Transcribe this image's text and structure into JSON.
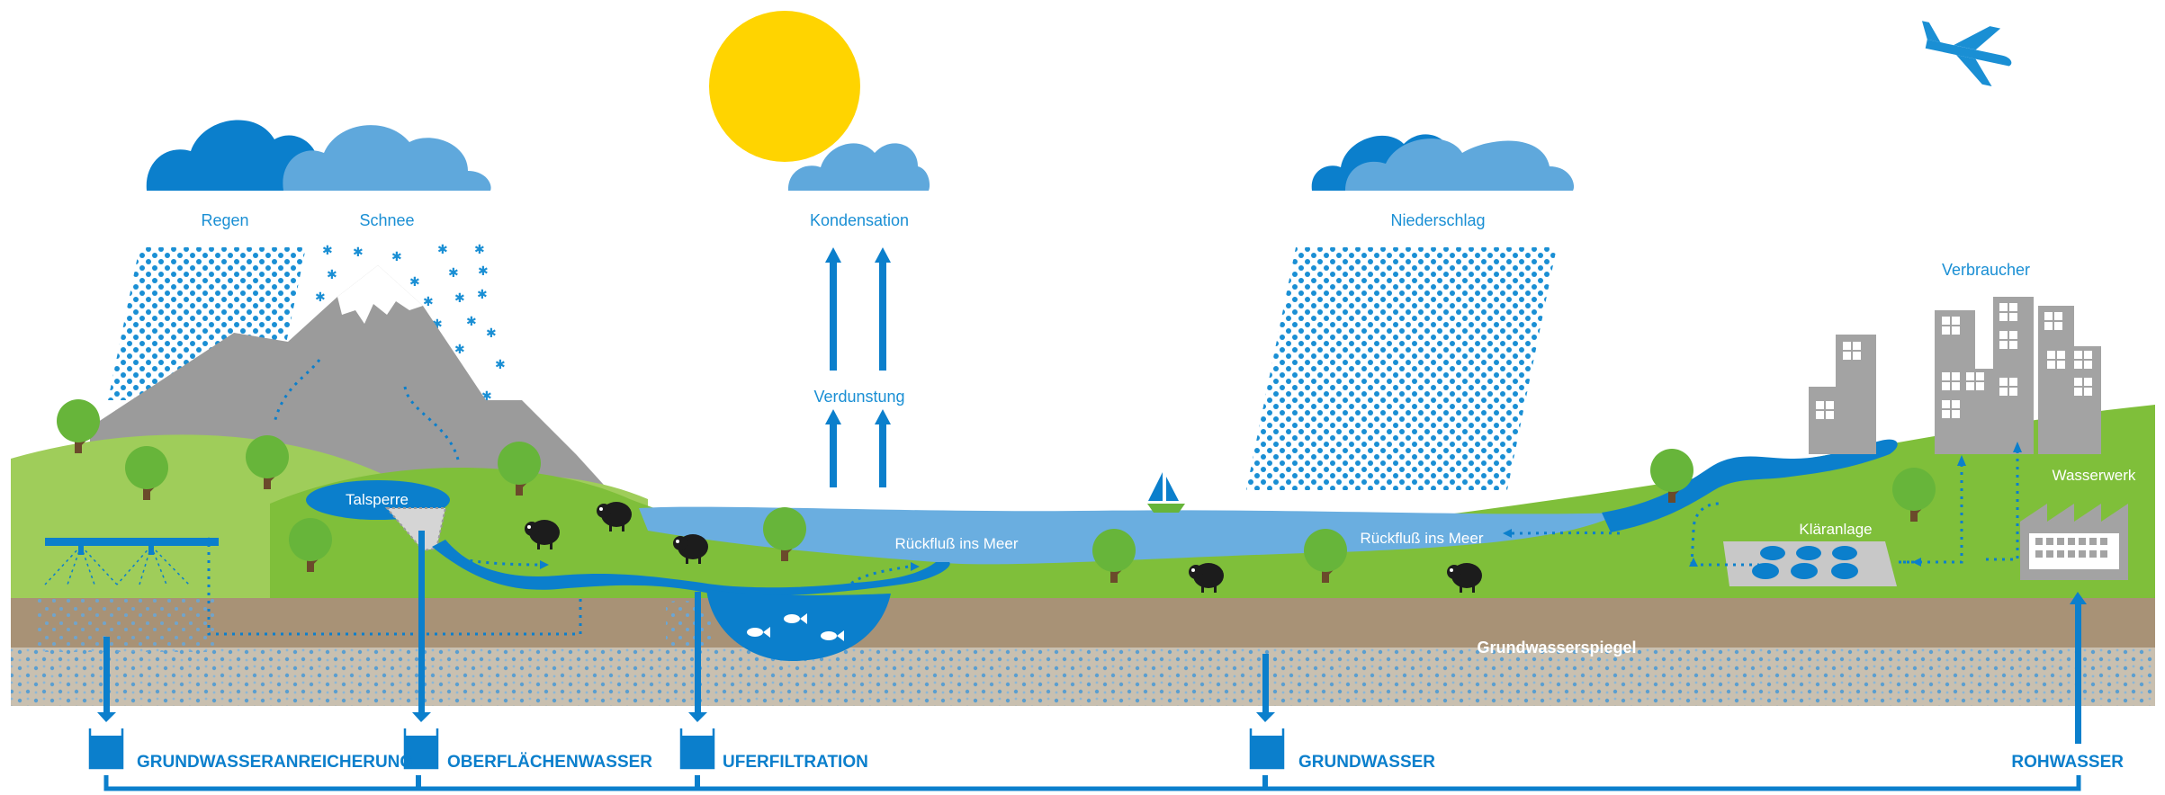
{
  "labels": {
    "regen": "Regen",
    "schnee": "Schnee",
    "kondensation": "Kondensation",
    "verdunstung": "Verdunstung",
    "niederschlag": "Niederschlag",
    "verbraucher": "Verbraucher",
    "wasserwerk": "Wasserwerk",
    "talsperre": "Talsperre",
    "rueckfluss_1": "Rückfluß ins Meer",
    "rueckfluss_2": "Rückfluß ins Meer",
    "klaeranlage": "Kläranlage",
    "grundwasserspiegel": "Grundwasserspiegel"
  },
  "sources": [
    {
      "label": "GRUNDWASSERANREICHERUNG"
    },
    {
      "label": "OBERFLÄCHENWASSER"
    },
    {
      "label": "UFERFILTRATION"
    },
    {
      "label": "GRUNDWASSER"
    },
    {
      "label": "ROHWASSER"
    }
  ],
  "colors": {
    "dark_blue": "#0b7fcc",
    "light_blue": "#5fa8dc",
    "lake_blue": "#6aaee0",
    "sun": "#ffd400",
    "grass": "#7fbf3a",
    "grass_light": "#9fcd5a",
    "mountain": "#9b9b9b",
    "soil": "#a89276",
    "gravel": "#c9c0b0",
    "building": "#a3a3a3"
  },
  "icons": [
    "sun-icon",
    "cloud-icon",
    "airplane-icon",
    "sailboat-icon",
    "sheep-icon",
    "tree-icon",
    "fish-icon",
    "factory-icon",
    "beaker-icon"
  ]
}
